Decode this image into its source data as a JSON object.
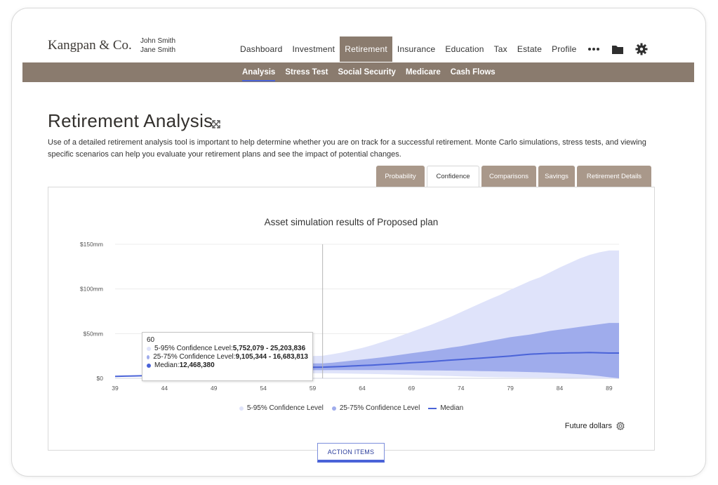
{
  "brand": {
    "logo": "Kangpan & Co."
  },
  "clients": {
    "primary": "John Smith",
    "secondary": "Jane Smith"
  },
  "nav": {
    "items": [
      "Dashboard",
      "Investment",
      "Retirement",
      "Insurance",
      "Education",
      "Tax",
      "Estate",
      "Profile"
    ],
    "active": "Retirement",
    "more_icon": "more-icon",
    "folder_icon": "folder-icon",
    "settings_icon": "gear-icon"
  },
  "subnav": {
    "items": [
      "Analysis",
      "Stress Test",
      "Social Security",
      "Medicare",
      "Cash Flows"
    ],
    "active": "Analysis"
  },
  "page": {
    "title": "Retirement Analysis",
    "description": "Use of a detailed retirement analysis tool is important to help determine whether you are on track for a successful retirement. Monte Carlo simulations, stress tests, and viewing specific scenarios can help you evaluate your retirement plans and see the impact of potential changes."
  },
  "tabs": {
    "items": [
      "Probability",
      "Confidence",
      "Comparisons",
      "Savings",
      "Retirement Details"
    ],
    "active": "Confidence"
  },
  "chart_data": {
    "type": "area",
    "title": "Asset simulation results of Proposed plan",
    "ylabels": [
      "$150mm",
      "$100mm",
      "$50mm",
      "$0"
    ],
    "ylim": [
      0,
      150
    ],
    "x": [
      39,
      40,
      41,
      42,
      43,
      44,
      45,
      46,
      47,
      48,
      49,
      50,
      51,
      52,
      53,
      54,
      55,
      56,
      57,
      58,
      59,
      60,
      61,
      62,
      63,
      64,
      65,
      66,
      67,
      68,
      69,
      70,
      71,
      72,
      73,
      74,
      75,
      76,
      77,
      78,
      79,
      80,
      81,
      82,
      83,
      84,
      85,
      86,
      87,
      88,
      89,
      90
    ],
    "xticks": [
      39,
      44,
      49,
      54,
      59,
      64,
      69,
      74,
      79,
      84,
      89
    ],
    "series": [
      {
        "name": "5-95% Confidence Level",
        "color": "#dfe3fa",
        "lower": [
          2.1,
          2.3,
          2.5,
          2.8,
          3.0,
          3.3,
          3.6,
          3.9,
          4.2,
          4.5,
          4.8,
          5.0,
          5.2,
          5.4,
          5.5,
          5.6,
          5.7,
          5.7,
          5.75,
          5.75,
          5.75,
          5.75,
          5.6,
          5.4,
          5.2,
          5.0,
          4.8,
          4.6,
          4.3,
          4.0,
          3.7,
          3.4,
          3.1,
          2.8,
          2.5,
          2.2,
          1.9,
          1.6,
          1.4,
          1.2,
          1.0,
          0.9,
          0.8,
          0.7,
          0.6,
          0.5,
          0.4,
          0.3,
          0.2,
          0.1,
          0.0,
          0.0
        ],
        "upper": [
          2.4,
          2.8,
          3.3,
          3.8,
          4.4,
          5.0,
          5.7,
          6.5,
          7.4,
          8.4,
          9.5,
          10.7,
          12.0,
          13.4,
          15.0,
          16.7,
          18.6,
          20.5,
          22.4,
          24.0,
          25.0,
          25.2,
          27.0,
          29.0,
          31.5,
          34.0,
          37.0,
          40.5,
          44.0,
          48.0,
          52.0,
          56.0,
          60.0,
          64.5,
          69.0,
          74.0,
          79.0,
          84.0,
          89.0,
          93.5,
          99.0,
          104.0,
          109.0,
          113.0,
          118.5,
          124.0,
          129.0,
          134.0,
          138.0,
          141.0,
          143.0,
          143.0
        ]
      },
      {
        "name": "25-75% Confidence Level",
        "color": "#9facec",
        "lower": [
          2.2,
          2.5,
          2.8,
          3.1,
          3.5,
          3.9,
          4.3,
          4.7,
          5.1,
          5.5,
          5.9,
          6.3,
          6.7,
          7.1,
          7.5,
          7.9,
          8.3,
          8.6,
          8.9,
          9.0,
          9.1,
          9.1,
          9.2,
          9.3,
          9.3,
          9.3,
          9.3,
          9.3,
          9.2,
          9.1,
          9.0,
          8.9,
          8.8,
          8.7,
          8.6,
          8.5,
          8.3,
          8.1,
          7.9,
          7.7,
          7.5,
          7.3,
          7.0,
          6.7,
          6.3,
          5.8,
          5.2,
          4.5,
          3.6,
          2.6,
          1.2,
          0.0
        ],
        "upper": [
          2.3,
          2.7,
          3.1,
          3.6,
          4.1,
          4.7,
          5.3,
          6.0,
          6.7,
          7.5,
          8.3,
          9.2,
          10.1,
          11.1,
          12.1,
          13.1,
          14.1,
          15.0,
          15.8,
          16.4,
          16.7,
          16.7,
          17.5,
          18.6,
          19.8,
          21.0,
          22.2,
          23.5,
          25.0,
          26.5,
          28.0,
          29.5,
          31.0,
          32.7,
          34.5,
          36.0,
          38.0,
          40.0,
          42.0,
          44.0,
          46.0,
          47.5,
          49.0,
          51.0,
          53.0,
          54.5,
          56.0,
          57.5,
          59.0,
          60.5,
          62.0,
          62.0
        ]
      },
      {
        "name": "Median",
        "color": "#4a63d8",
        "values": [
          2.2,
          2.4,
          2.7,
          3.0,
          3.3,
          3.7,
          4.1,
          4.6,
          5.1,
          5.6,
          6.1,
          6.7,
          7.3,
          7.9,
          8.5,
          9.2,
          9.9,
          10.6,
          11.3,
          11.9,
          12.3,
          12.5,
          12.9,
          13.3,
          13.8,
          14.3,
          14.8,
          15.4,
          16.0,
          16.7,
          17.4,
          18.1,
          18.8,
          19.6,
          20.4,
          21.1,
          21.9,
          22.6,
          23.4,
          24.2,
          25.0,
          26.0,
          27.0,
          27.5,
          28.0,
          28.2,
          28.4,
          28.6,
          28.8,
          28.6,
          28.3,
          28.3
        ]
      }
    ],
    "crosshair_x": 60,
    "legend": [
      "5-95% Confidence Level",
      "25-75% Confidence Level",
      "Median"
    ],
    "legend_position": "bottom"
  },
  "tooltip": {
    "age": "60",
    "band95_label": "5-95% Confidence Level: ",
    "band95_value": "5,752,079 - 25,203,836",
    "band75_label": "25-75% Confidence Level: ",
    "band75_value": "9,105,344 - 16,683,813",
    "median_label": "Median: ",
    "median_value": "12,468,380"
  },
  "footer": {
    "future_dollars": "Future dollars",
    "action_items": "ACTION ITEMS"
  }
}
